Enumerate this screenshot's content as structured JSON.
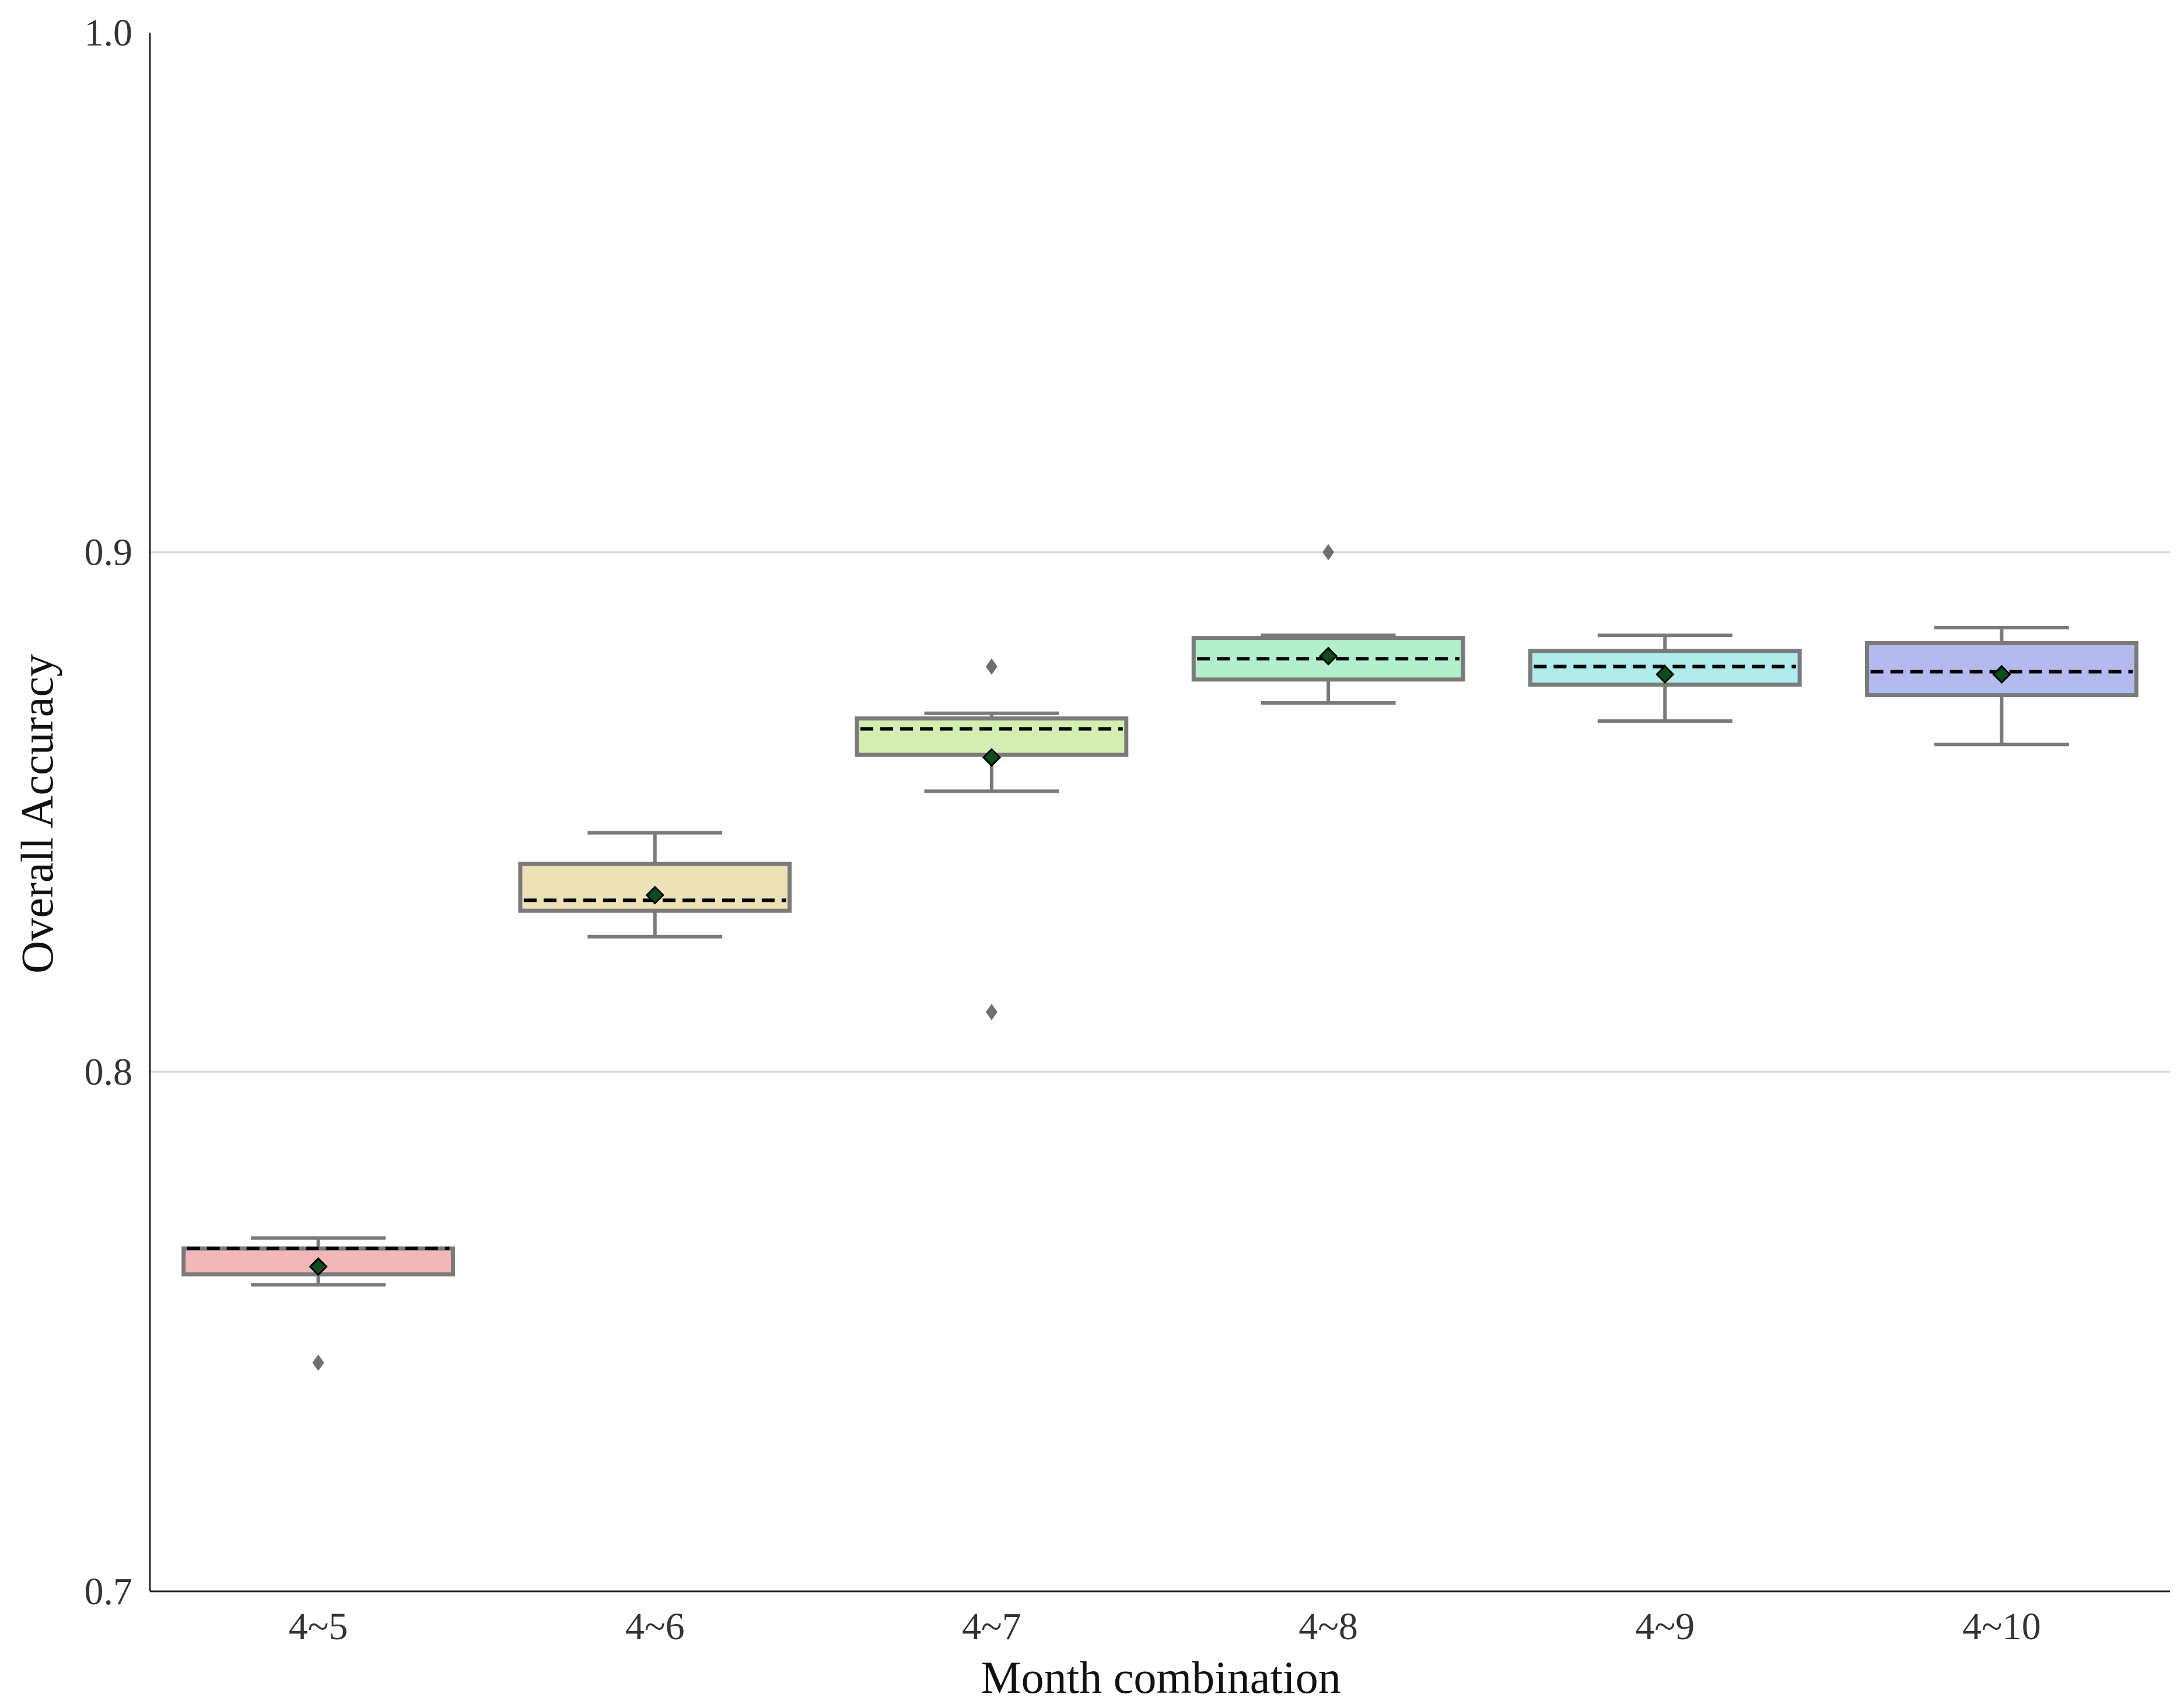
{
  "chart_data": {
    "type": "box",
    "title": "",
    "xlabel": "Month combination",
    "ylabel": "Overall Accuracy",
    "ylim": [
      0.7,
      1.0
    ],
    "yticks": [
      0.7,
      0.8,
      0.9,
      1.0
    ],
    "ytick_labels": [
      "0.7",
      "0.8",
      "0.9",
      "1.0"
    ],
    "grid": "horizontal",
    "categories": [
      "4~5",
      "4~6",
      "4~7",
      "4~8",
      "4~9",
      "4~10"
    ],
    "colors": [
      "#f2b8b8",
      "#ede1b7",
      "#d3eeb0",
      "#b2efcb",
      "#b1ecec",
      "#b3bbee"
    ],
    "boxes": [
      {
        "category": "4~5",
        "whisker_low": 0.759,
        "q1": 0.761,
        "median": 0.766,
        "q3": 0.766,
        "whisker_high": 0.768,
        "mean": 0.7625,
        "fliers": [
          0.744
        ]
      },
      {
        "category": "4~6",
        "whisker_low": 0.826,
        "q1": 0.831,
        "median": 0.833,
        "q3": 0.84,
        "whisker_high": 0.846,
        "mean": 0.834,
        "fliers": []
      },
      {
        "category": "4~7",
        "whisker_low": 0.854,
        "q1": 0.861,
        "median": 0.866,
        "q3": 0.868,
        "whisker_high": 0.869,
        "mean": 0.8605,
        "fliers": [
          0.878,
          0.8115
        ]
      },
      {
        "category": "4~8",
        "whisker_low": 0.871,
        "q1": 0.8755,
        "median": 0.8795,
        "q3": 0.8835,
        "whisker_high": 0.884,
        "mean": 0.88,
        "fliers": [
          0.9
        ]
      },
      {
        "category": "4~9",
        "whisker_low": 0.8675,
        "q1": 0.8745,
        "median": 0.878,
        "q3": 0.881,
        "whisker_high": 0.884,
        "mean": 0.8765,
        "fliers": []
      },
      {
        "category": "4~10",
        "whisker_low": 0.863,
        "q1": 0.8725,
        "median": 0.877,
        "q3": 0.8825,
        "whisker_high": 0.8855,
        "mean": 0.8765,
        "fliers": []
      }
    ]
  }
}
